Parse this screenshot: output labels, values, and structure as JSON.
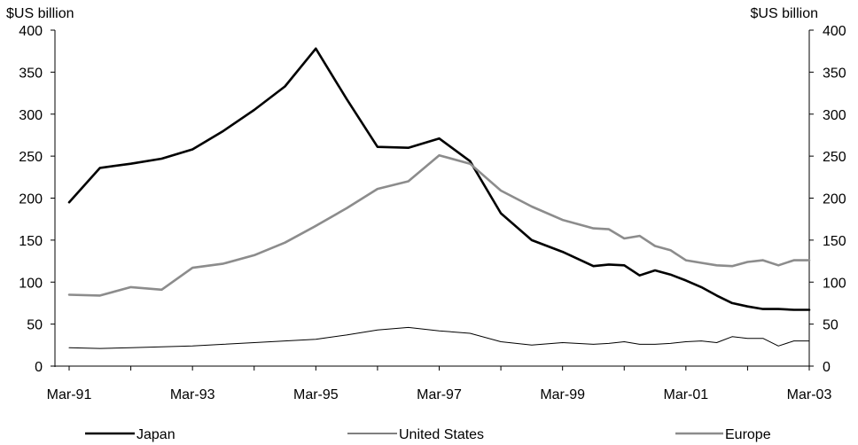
{
  "chart_data": {
    "type": "line",
    "units_left": "$US billion",
    "units_right": "$US billion",
    "ylim": [
      0,
      400
    ],
    "y_ticks": [
      0,
      50,
      100,
      150,
      200,
      250,
      300,
      350,
      400
    ],
    "x_tick_labels": [
      "Mar-91",
      "Mar-93",
      "Mar-95",
      "Mar-97",
      "Mar-99",
      "Mar-01",
      "Mar-03"
    ],
    "x_range": [
      "Mar-91",
      "Mar-03"
    ],
    "grid": false,
    "legend_position": "bottom",
    "series": [
      {
        "name": "Japan",
        "color": "#000000",
        "width": "thick",
        "x": [
          "1991-03",
          "1991-09",
          "1992-03",
          "1992-09",
          "1993-03",
          "1993-09",
          "1994-03",
          "1994-09",
          "1995-03",
          "1995-09",
          "1996-03",
          "1996-09",
          "1997-03",
          "1997-09",
          "1998-03",
          "1998-09",
          "1999-03",
          "1999-09",
          "1999-12",
          "2000-03",
          "2000-06",
          "2000-09",
          "2000-12",
          "2001-03",
          "2001-06",
          "2001-09",
          "2001-12",
          "2002-03",
          "2002-06",
          "2002-09",
          "2002-12",
          "2003-03"
        ],
        "values": [
          195,
          236,
          241,
          247,
          258,
          280,
          305,
          333,
          378,
          318,
          261,
          260,
          271,
          244,
          182,
          150,
          136,
          119,
          121,
          120,
          108,
          114,
          109,
          102,
          94,
          84,
          75,
          71,
          68,
          68,
          67,
          67
        ]
      },
      {
        "name": "United States",
        "color": "#000000",
        "width": "thin",
        "x": [
          "1991-03",
          "1991-09",
          "1992-03",
          "1992-09",
          "1993-03",
          "1993-09",
          "1994-03",
          "1994-09",
          "1995-03",
          "1995-09",
          "1996-03",
          "1996-09",
          "1997-03",
          "1997-09",
          "1998-03",
          "1998-09",
          "1999-03",
          "1999-09",
          "1999-12",
          "2000-03",
          "2000-06",
          "2000-09",
          "2000-12",
          "2001-03",
          "2001-06",
          "2001-09",
          "2001-12",
          "2002-03",
          "2002-06",
          "2002-09",
          "2002-12",
          "2003-03"
        ],
        "values": [
          22,
          21,
          22,
          23,
          24,
          26,
          28,
          30,
          32,
          37,
          43,
          46,
          42,
          39,
          29,
          25,
          28,
          26,
          27,
          29,
          26,
          26,
          27,
          29,
          30,
          28,
          35,
          33,
          33,
          24,
          30,
          30
        ]
      },
      {
        "name": "Europe",
        "color": "#8c8c8c",
        "width": "thick",
        "x": [
          "1991-03",
          "1991-09",
          "1992-03",
          "1992-09",
          "1993-03",
          "1993-09",
          "1994-03",
          "1994-09",
          "1995-03",
          "1995-09",
          "1996-03",
          "1996-09",
          "1997-03",
          "1997-09",
          "1998-03",
          "1998-09",
          "1999-03",
          "1999-09",
          "1999-12",
          "2000-03",
          "2000-06",
          "2000-09",
          "2000-12",
          "2001-03",
          "2001-06",
          "2001-09",
          "2001-12",
          "2002-03",
          "2002-06",
          "2002-09",
          "2002-12",
          "2003-03"
        ],
        "values": [
          85,
          84,
          94,
          91,
          117,
          122,
          132,
          147,
          167,
          188,
          211,
          220,
          251,
          241,
          209,
          190,
          174,
          164,
          163,
          152,
          155,
          143,
          138,
          126,
          123,
          120,
          119,
          124,
          126,
          120,
          126,
          126
        ]
      }
    ]
  }
}
